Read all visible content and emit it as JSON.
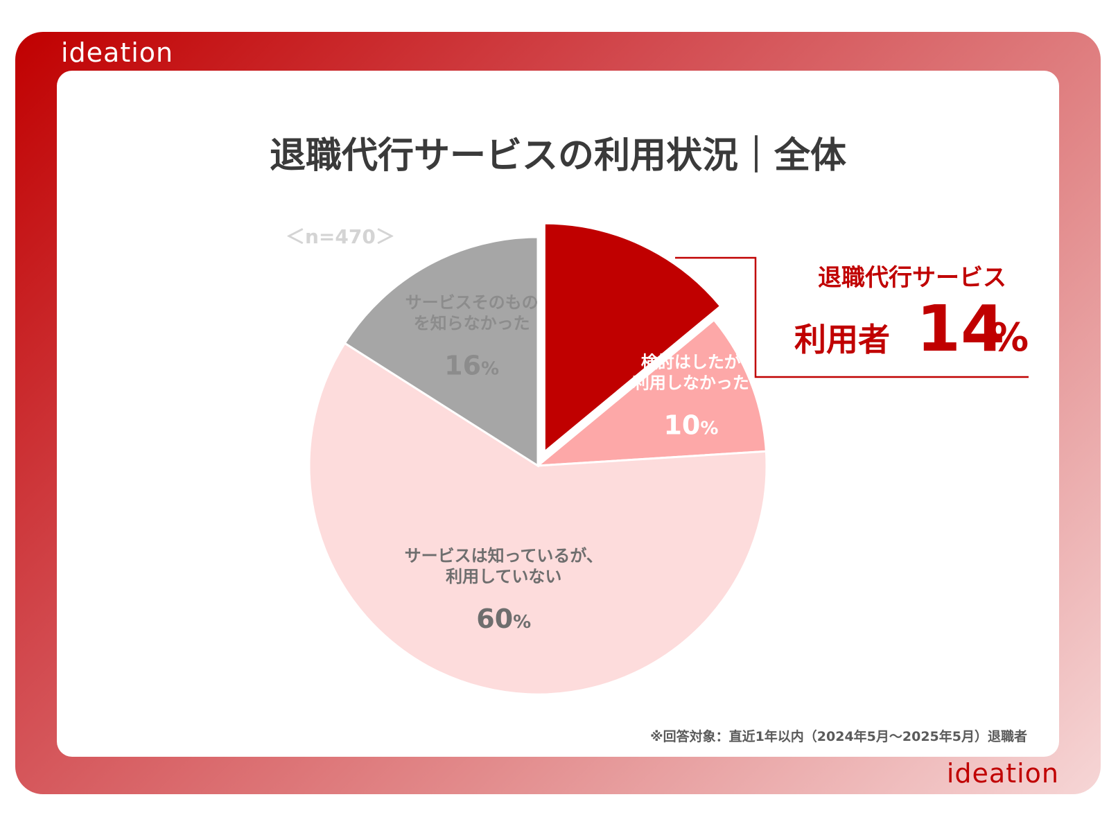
{
  "brand": {
    "logo_text": "ideation",
    "accent": "#c00000"
  },
  "title": "退職代行サービスの利用状況｜全体",
  "sample": "＜n=470＞",
  "footnote": "※回答対象：直近1年以内（2024年5月〜2025年5月）退職者",
  "callout": {
    "line1": "退職代行サービス",
    "line2": "利用者",
    "value": "14",
    "unit": "%"
  },
  "chart_data": {
    "type": "pie",
    "title": "退職代行サービスの利用状況｜全体",
    "n": 470,
    "unit": "%",
    "slices": [
      {
        "label": "退職代行サービス利用者",
        "label_lines": [],
        "value": 14,
        "color": "#c00000",
        "exploded": true
      },
      {
        "label": "検討はしたが利用しなかった",
        "label_lines": [
          "検討はしたが",
          "利用しなかった"
        ],
        "value": 10,
        "color": "#fda8a8",
        "text_color": "#ffffff"
      },
      {
        "label": "サービスは知っているが、利用していない",
        "label_lines": [
          "サービスは知っているが、",
          "利用していない"
        ],
        "value": 60,
        "color": "#fddcdc",
        "text_color": "#6e6e6e"
      },
      {
        "label": "サービスそのものを知らなかった",
        "label_lines": [
          "サービスそのもの",
          "を知らなかった"
        ],
        "value": 16,
        "color": "#a6a6a6",
        "text_color": "#8c8c8c"
      }
    ]
  }
}
